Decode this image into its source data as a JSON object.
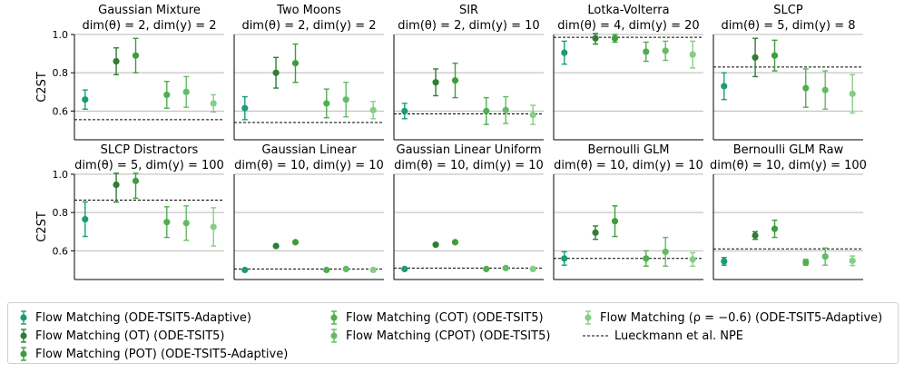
{
  "chart_data": {
    "type": "scatter",
    "ylabel": "C2ST",
    "ylim": [
      0.45,
      1.0
    ],
    "yticks": [
      "0.6",
      "0.8",
      "1.0"
    ],
    "reference_label": "Lueckmann et al. NPE",
    "methods": [
      {
        "name": "Flow Matching (ODE-TSIT5-Adaptive)",
        "color": "#1a9c78"
      },
      {
        "name": "Flow Matching (OT) (ODE-TSIT5)",
        "color": "#2f7d33"
      },
      {
        "name": "Flow Matching (POT) (ODE-TSIT5-Adaptive)",
        "color": "#3d9e3d"
      },
      {
        "name": "Flow Matching (COT) (ODE-TSIT5)",
        "color": "#4fae4f"
      },
      {
        "name": "Flow Matching (CPOT) (ODE-TSIT5)",
        "color": "#63bc63"
      },
      {
        "name": "Flow Matching (ρ = −0.6) (ODE-TSIT5-Adaptive)",
        "color": "#85ce85"
      }
    ],
    "panels": [
      {
        "title": "Gaussian Mixture",
        "subtitle": "dim(θ) = 2, dim(y) = 2",
        "reference": 0.555,
        "mean": [
          0.66,
          0.86,
          0.89,
          0.685,
          0.7,
          0.64
        ],
        "err": [
          0.05,
          0.07,
          0.09,
          0.07,
          0.08,
          0.045
        ]
      },
      {
        "title": "Two Moons",
        "subtitle": "dim(θ) = 2, dim(y) = 2",
        "reference": 0.54,
        "mean": [
          0.615,
          0.8,
          0.85,
          0.64,
          0.66,
          0.605
        ],
        "err": [
          0.06,
          0.08,
          0.1,
          0.075,
          0.09,
          0.045
        ]
      },
      {
        "title": "SIR",
        "subtitle": "dim(θ) = 2, dim(y) = 10",
        "reference": 0.585,
        "mean": [
          0.6,
          0.75,
          0.76,
          0.6,
          0.605,
          0.58
        ],
        "err": [
          0.04,
          0.07,
          0.09,
          0.07,
          0.07,
          0.05
        ]
      },
      {
        "title": "Lotka-Volterra",
        "subtitle": "dim(θ) = 4, dim(y) = 20",
        "reference": 0.985,
        "mean": [
          0.905,
          0.98,
          0.98,
          0.91,
          0.915,
          0.895
        ],
        "err": [
          0.06,
          0.03,
          0.02,
          0.05,
          0.05,
          0.07
        ]
      },
      {
        "title": "SLCP",
        "subtitle": "dim(θ) = 5, dim(y) = 8",
        "reference": 0.83,
        "mean": [
          0.73,
          0.88,
          0.89,
          0.72,
          0.71,
          0.69
        ],
        "err": [
          0.07,
          0.1,
          0.08,
          0.1,
          0.1,
          0.1
        ]
      },
      {
        "title": "SLCP Distractors",
        "subtitle": "dim(θ) = 5, dim(y) = 100",
        "reference": 0.865,
        "mean": [
          0.765,
          0.945,
          0.965,
          0.75,
          0.745,
          0.725
        ],
        "err": [
          0.09,
          0.09,
          0.09,
          0.08,
          0.09,
          0.1
        ]
      },
      {
        "title": "Gaussian Linear",
        "subtitle": "dim(θ) = 10, dim(y) = 10",
        "reference": 0.505,
        "mean": [
          0.5,
          0.625,
          0.645,
          0.5,
          0.505,
          0.5
        ],
        "err": [
          0.005,
          0.006,
          0.006,
          0.005,
          0.006,
          0.005
        ]
      },
      {
        "title": "Gaussian Linear Uniform",
        "subtitle": "dim(θ) = 10, dim(y) = 10",
        "reference": 0.51,
        "mean": [
          0.505,
          0.632,
          0.645,
          0.505,
          0.51,
          0.505
        ],
        "err": [
          0.005,
          0.006,
          0.006,
          0.005,
          0.006,
          0.005
        ]
      },
      {
        "title": "Bernoulli GLM",
        "subtitle": "dim(θ) = 10, dim(y) = 10",
        "reference": 0.56,
        "mean": [
          0.56,
          0.695,
          0.755,
          0.56,
          0.595,
          0.555
        ],
        "err": [
          0.035,
          0.035,
          0.08,
          0.04,
          0.075,
          0.035
        ]
      },
      {
        "title": "Bernoulli GLM Raw",
        "subtitle": "dim(θ) = 10, dim(y) = 100",
        "reference": 0.61,
        "mean": [
          0.545,
          0.68,
          0.715,
          0.54,
          0.57,
          0.548
        ],
        "err": [
          0.02,
          0.02,
          0.045,
          0.015,
          0.045,
          0.025
        ]
      }
    ]
  }
}
